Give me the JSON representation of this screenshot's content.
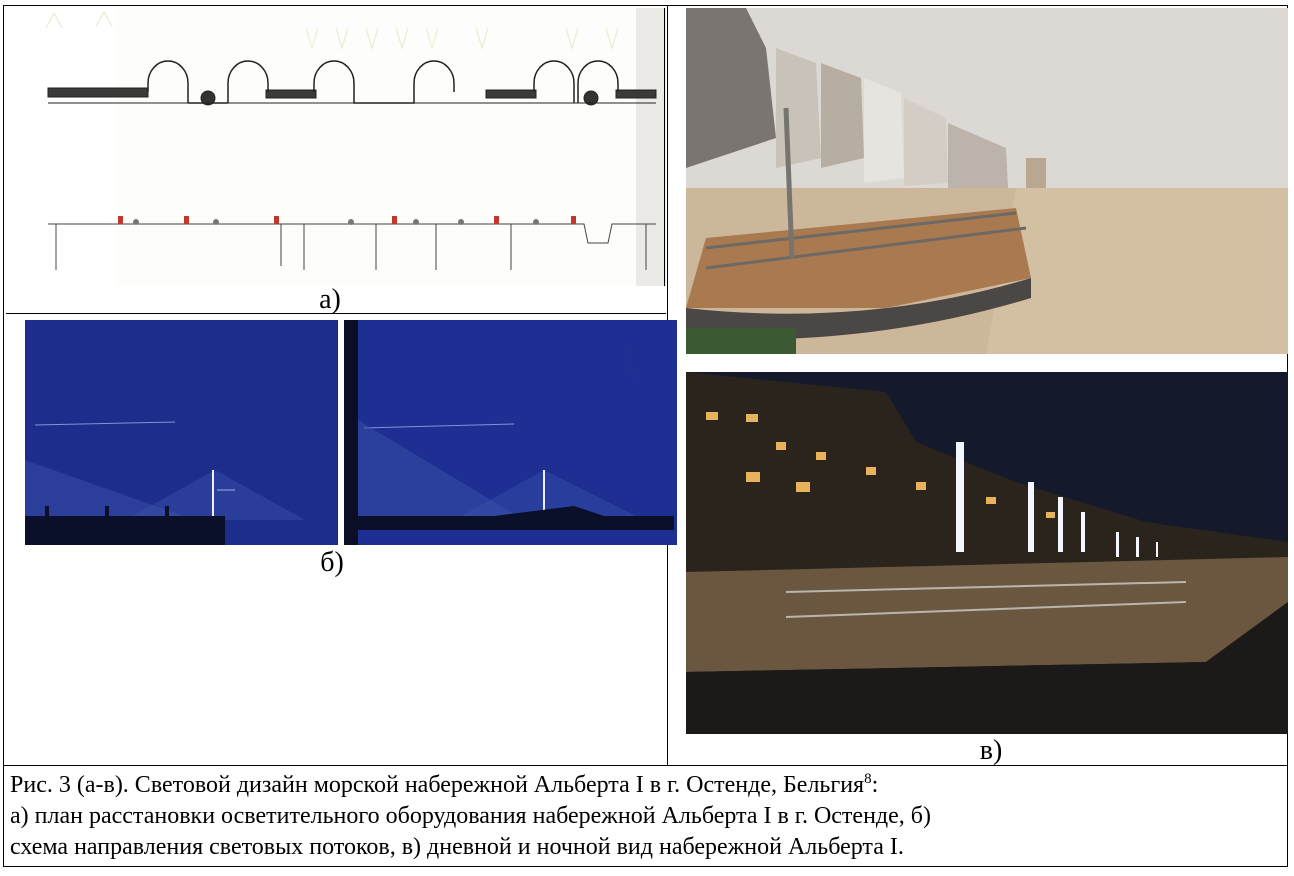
{
  "figure": {
    "panels": {
      "a_label": "а)",
      "b_label": "б)",
      "v_label": "в)"
    },
    "caption": {
      "line1_text": "Рис. 3 (а-в). Световой дизайн морской набережной Альберта I в г. Остенде, Бельгия",
      "line1_footnote": "8",
      "line1_tail": ":",
      "line2": "а) план расстановки осветительного оборудования набережной Альберта I в г. Остенде, б)",
      "line3": "схема направления световых потоков, в) дневной и ночной вид набережной Альберта I."
    }
  },
  "colors": {
    "schematic_blue": "#1d2f92",
    "night_sky": "#0c0d18",
    "lamp_glow": "#f3f6ff",
    "sand": "#cdb79b"
  }
}
